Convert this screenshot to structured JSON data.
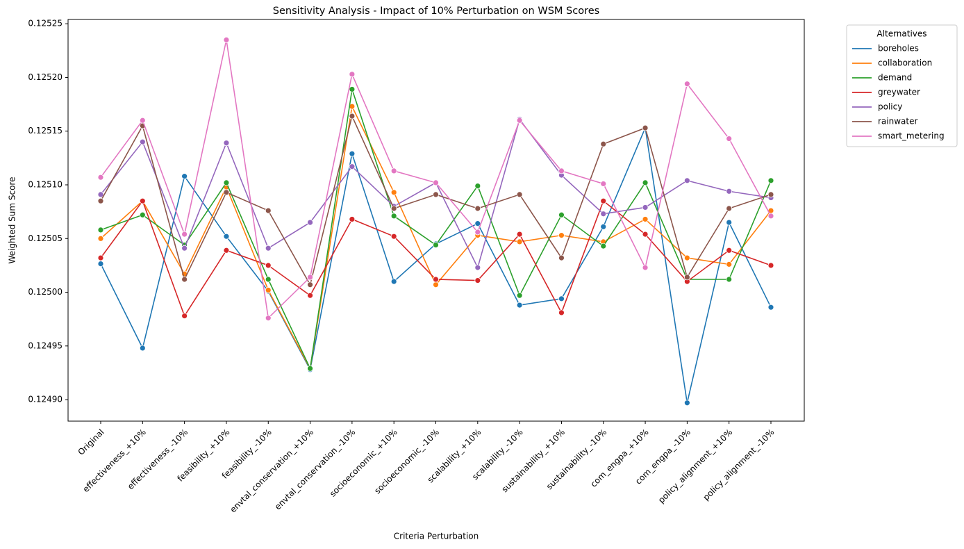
{
  "chart_data": {
    "type": "line",
    "title": "Sensitivity Analysis - Impact of 10% Perturbation on WSM Scores",
    "x_label": "Criteria Perturbation",
    "y_label": "Weighted Sum Score",
    "legend_title": "Alternatives",
    "legend": "outside-upper-right",
    "grid": false,
    "categories": [
      "Original",
      "effectiveness_+10%",
      "effectiveness_-10%",
      "feasibility_+10%",
      "feasibility_-10%",
      "envtal_conservation_+10%",
      "envtal_conservation_-10%",
      "socioeconomic_+10%",
      "socioeconomic_-10%",
      "scalability_+10%",
      "scalability_-10%",
      "sustainability_+10%",
      "sustainability_-10%",
      "com_engpa_+10%",
      "com_engpa_-10%",
      "policy_alignment_+10%",
      "policy_alignment_-10%"
    ],
    "ylim": [
      0.12488,
      0.125254
    ],
    "yticks": [
      {
        "value": 0.1249,
        "label": "0.12490"
      },
      0.12495,
      {
        "value": 0.125,
        "label": "0.12500"
      },
      0.12505,
      {
        "value": 0.1251,
        "label": "0.12510"
      },
      0.12515,
      {
        "value": 0.1252,
        "label": "0.12520"
      },
      0.12525
    ],
    "series": [
      {
        "name": "boreholes",
        "color": "#1f77b4",
        "values": [
          0.1250265,
          0.124948,
          0.125108,
          0.125052,
          0.125001,
          0.124928,
          0.125129,
          0.12501,
          0.125045,
          0.125064,
          0.124988,
          0.124994,
          0.125061,
          0.125153,
          0.124897,
          0.125065,
          0.124986
        ]
      },
      {
        "name": "collaboration",
        "color": "#ff7f0e",
        "values": [
          0.12505,
          0.125085,
          0.125017,
          0.125098,
          0.125002,
          0.124929,
          0.125173,
          0.125093,
          0.125007,
          0.125053,
          0.125047,
          0.125053,
          0.125047,
          0.125068,
          0.125032,
          0.125026,
          0.125076
        ]
      },
      {
        "name": "demand",
        "color": "#2ca02c",
        "values": [
          0.125058,
          0.125072,
          0.125044,
          0.125102,
          0.125012,
          0.124929,
          0.125189,
          0.125071,
          0.125044,
          0.125099,
          0.124997,
          0.125072,
          0.125043,
          0.125102,
          0.125012,
          0.125012,
          0.125104
        ]
      },
      {
        "name": "greywater",
        "color": "#d62728",
        "values": [
          0.125032,
          0.125085,
          0.124978,
          0.125039,
          0.125025,
          0.124997,
          0.125068,
          0.125052,
          0.125012,
          0.125011,
          0.125054,
          0.124981,
          0.125085,
          0.125054,
          0.12501,
          0.125039,
          0.125025
        ]
      },
      {
        "name": "policy",
        "color": "#9467bd",
        "values": [
          0.125091,
          0.12514,
          0.125041,
          0.125139,
          0.125041,
          0.125065,
          0.125117,
          0.12508,
          0.125102,
          0.125023,
          0.125161,
          0.125109,
          0.125073,
          0.125079,
          0.125104,
          0.125094,
          0.125088
        ]
      },
      {
        "name": "rainwater",
        "color": "#8c564b",
        "values": [
          0.125085,
          0.125155,
          0.125012,
          0.125093,
          0.125076,
          0.125007,
          0.125164,
          0.125078,
          0.125091,
          0.125078,
          0.125091,
          0.125032,
          0.125138,
          0.125153,
          0.125014,
          0.125078,
          0.125091
        ]
      },
      {
        "name": "smart_metering",
        "color": "#e377c2",
        "values": [
          0.125107,
          0.12516,
          0.125054,
          0.125235,
          0.124976,
          0.125014,
          0.125203,
          0.125113,
          0.125102,
          0.125056,
          0.12516,
          0.125113,
          0.125101,
          0.125023,
          0.125194,
          0.125143,
          0.125071
        ]
      }
    ]
  }
}
